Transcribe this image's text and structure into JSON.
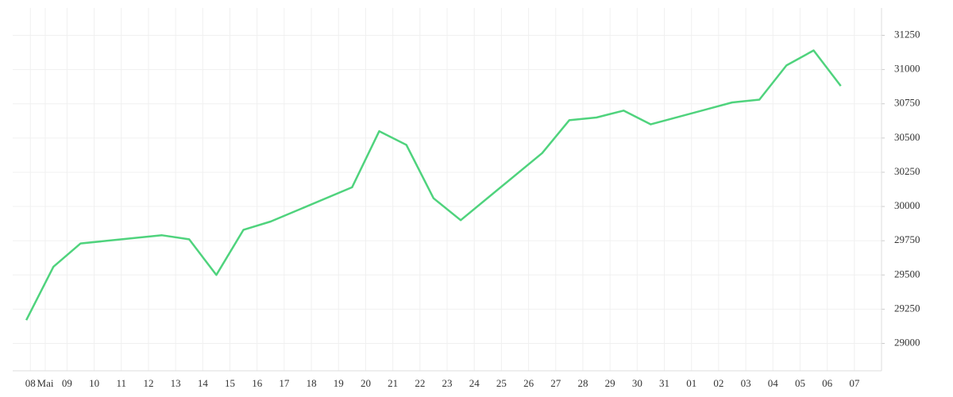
{
  "chart_data": {
    "type": "line",
    "x": [
      0,
      1,
      2,
      5,
      6,
      7,
      8,
      9,
      12,
      13,
      14,
      15,
      16,
      19,
      20,
      21,
      22,
      23,
      26,
      27,
      28,
      29,
      30
    ],
    "series": [
      {
        "name": null,
        "color": "#4fd37d",
        "values": [
          29170,
          29560,
          29730,
          29790,
          29760,
          29500,
          29830,
          29890,
          30140,
          30550,
          30450,
          30060,
          29900,
          30390,
          30630,
          30650,
          30700,
          30600,
          30760,
          30780,
          31030,
          31140,
          30880
        ]
      }
    ],
    "xlim": [
      -0.5,
      31.5
    ],
    "xticks": [
      {
        "value": 0.15,
        "label": "08"
      },
      {
        "value": 0.7,
        "label": "Mai"
      },
      {
        "value": 1.5,
        "label": "09"
      },
      {
        "value": 2.5,
        "label": "10"
      },
      {
        "value": 3.5,
        "label": "11"
      },
      {
        "value": 4.5,
        "label": "12"
      },
      {
        "value": 5.5,
        "label": "13"
      },
      {
        "value": 6.5,
        "label": "14"
      },
      {
        "value": 7.5,
        "label": "15"
      },
      {
        "value": 8.5,
        "label": "16"
      },
      {
        "value": 9.5,
        "label": "17"
      },
      {
        "value": 10.5,
        "label": "18"
      },
      {
        "value": 11.5,
        "label": "19"
      },
      {
        "value": 12.5,
        "label": "20"
      },
      {
        "value": 13.5,
        "label": "21"
      },
      {
        "value": 14.5,
        "label": "22"
      },
      {
        "value": 15.5,
        "label": "23"
      },
      {
        "value": 16.5,
        "label": "24"
      },
      {
        "value": 17.5,
        "label": "25"
      },
      {
        "value": 18.5,
        "label": "26"
      },
      {
        "value": 19.5,
        "label": "27"
      },
      {
        "value": 20.5,
        "label": "28"
      },
      {
        "value": 21.5,
        "label": "29"
      },
      {
        "value": 22.5,
        "label": "30"
      },
      {
        "value": 23.5,
        "label": "31"
      },
      {
        "value": 24.5,
        "label": "01"
      },
      {
        "value": 25.5,
        "label": "02"
      },
      {
        "value": 26.5,
        "label": "03"
      },
      {
        "value": 27.5,
        "label": "04"
      },
      {
        "value": 28.5,
        "label": "05"
      },
      {
        "value": 29.5,
        "label": "06"
      },
      {
        "value": 30.5,
        "label": "07"
      }
    ],
    "ylim": [
      28800,
      31450
    ],
    "yticks": [
      29000,
      29250,
      29500,
      29750,
      30000,
      30250,
      30500,
      30750,
      31000,
      31250
    ],
    "grid": true
  }
}
